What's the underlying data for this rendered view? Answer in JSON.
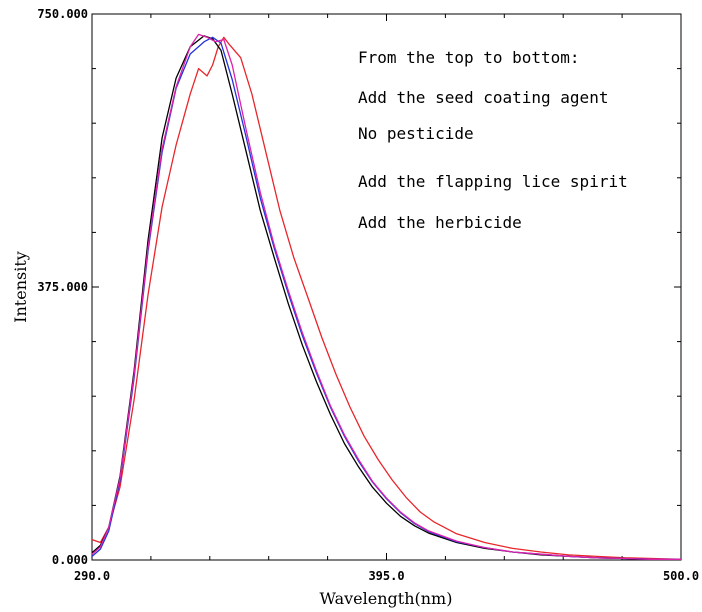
{
  "chart_data": {
    "type": "line",
    "xlabel": "Wavelength(nm)",
    "ylabel": "Intensity",
    "xlim": [
      290.0,
      500.0
    ],
    "ylim": [
      0.0,
      750.0
    ],
    "x_ticks": [
      290.0,
      395.0,
      500.0
    ],
    "x_tick_labels": [
      "290.0",
      "395.0",
      "500.0"
    ],
    "y_ticks": [
      0.0,
      375.0,
      750.0
    ],
    "y_tick_labels": [
      "0.000",
      "375.000",
      "750.000"
    ],
    "grid": false,
    "annotations": [
      "From the top to bottom:",
      "Add the seed coating agent",
      "No pesticide",
      "Add the flapping lice spirit",
      "Add the herbicide"
    ],
    "series": [
      {
        "color": "#e8262b",
        "x": [
          290,
          293,
          296,
          300,
          305,
          310,
          315,
          320,
          325,
          328,
          331,
          333,
          335,
          337,
          339,
          343,
          347,
          352,
          357,
          362,
          367,
          372,
          377,
          382,
          387,
          392,
          397,
          402,
          407,
          412,
          420,
          430,
          440,
          450,
          460,
          470,
          480,
          490,
          500
        ],
        "y": [
          28,
          24,
          45,
          100,
          220,
          365,
          485,
          570,
          640,
          675,
          665,
          680,
          705,
          718,
          708,
          690,
          640,
          560,
          480,
          415,
          360,
          305,
          255,
          210,
          170,
          138,
          110,
          86,
          66,
          52,
          36,
          24,
          16,
          11,
          7,
          5,
          3,
          2,
          1
        ]
      },
      {
        "color": "#000000",
        "x": [
          290,
          293,
          296,
          300,
          305,
          310,
          315,
          320,
          325,
          330,
          333,
          336,
          340,
          345,
          350,
          355,
          360,
          365,
          370,
          375,
          380,
          385,
          390,
          395,
          400,
          405,
          410,
          420,
          430,
          440,
          450,
          460,
          470,
          480,
          490,
          500
        ],
        "y": [
          10,
          20,
          45,
          115,
          260,
          440,
          580,
          662,
          705,
          720,
          716,
          700,
          640,
          560,
          480,
          415,
          352,
          295,
          245,
          200,
          160,
          128,
          100,
          78,
          60,
          47,
          37,
          24,
          16,
          11,
          7,
          5,
          3,
          2,
          1,
          1
        ]
      },
      {
        "color": "#2233dd",
        "x": [
          290,
          293,
          296,
          300,
          305,
          310,
          315,
          320,
          325,
          330,
          333,
          336,
          340,
          345,
          350,
          355,
          360,
          365,
          370,
          375,
          380,
          385,
          390,
          395,
          400,
          405,
          410,
          420,
          430,
          440,
          450,
          460,
          470,
          480,
          490,
          500
        ],
        "y": [
          5,
          15,
          40,
          108,
          250,
          425,
          560,
          648,
          695,
          712,
          718,
          710,
          660,
          580,
          497,
          428,
          366,
          308,
          257,
          210,
          170,
          136,
          107,
          84,
          65,
          50,
          39,
          25,
          17,
          11,
          8,
          5,
          3,
          2,
          1,
          1
        ]
      },
      {
        "color": "#dd22aa",
        "x": [
          290,
          293,
          296,
          300,
          305,
          310,
          315,
          320,
          325,
          328,
          331,
          334,
          337,
          340,
          345,
          350,
          355,
          360,
          365,
          370,
          375,
          380,
          385,
          390,
          395,
          400,
          405,
          410,
          420,
          430,
          440,
          450,
          460,
          470,
          480,
          490,
          500
        ],
        "y": [
          8,
          18,
          45,
          112,
          255,
          430,
          565,
          650,
          705,
          722,
          718,
          712,
          715,
          680,
          590,
          505,
          432,
          370,
          312,
          260,
          212,
          172,
          138,
          108,
          85,
          66,
          51,
          40,
          26,
          17,
          11,
          8,
          5,
          3,
          2,
          1,
          1
        ]
      }
    ]
  }
}
